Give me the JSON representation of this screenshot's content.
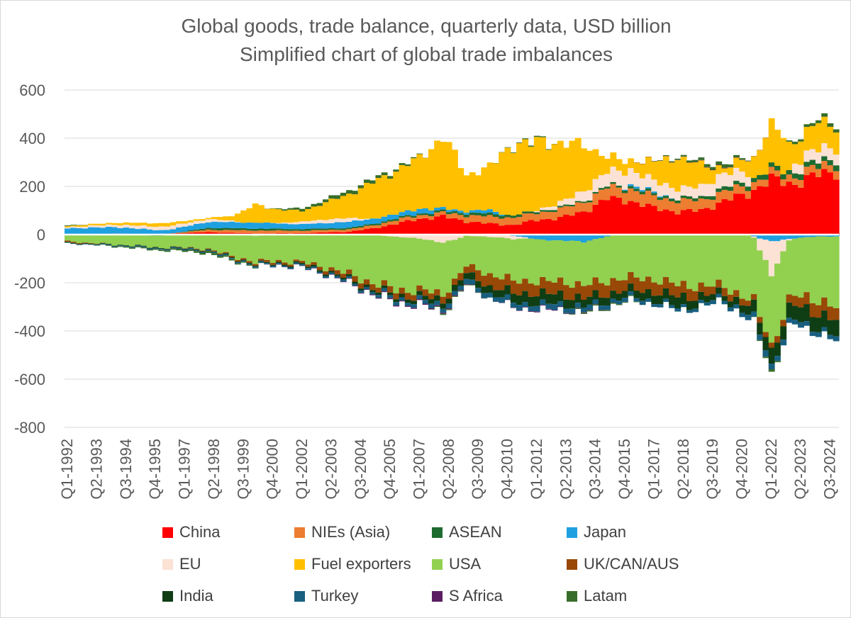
{
  "colors": {
    "china": "#ff0000",
    "nies": "#ed7d31",
    "asean": "#1e6b30",
    "japan": "#1fa0e0",
    "eu": "#fbe2d5",
    "fuel": "#ffc000",
    "usa": "#92d050",
    "ukcanaus": "#984807",
    "india": "#0f3d14",
    "turkey": "#185f80",
    "safrica": "#5c1c63",
    "latam": "#376d2a",
    "gridline": "#d9d9d9",
    "axis_text": "#595959"
  },
  "chart_data": {
    "type": "stacked-bar",
    "title": "Global goods, trade balance, quarterly data, USD billion",
    "subtitle": "Simplified chart of global trade imbalances",
    "xlabel": "",
    "ylabel": "",
    "ylim": [
      -800,
      600
    ],
    "yticks": [
      600,
      400,
      200,
      0,
      -200,
      -400,
      -600,
      -800
    ],
    "ytick_labels": [
      "600",
      "400",
      "200",
      "0",
      "-200",
      "-400",
      "-600",
      "-800"
    ],
    "grid": true,
    "legend_position": "bottom",
    "x_start_year": 1992,
    "x_quarters": 132,
    "xtick_labels": [
      "Q1-1992",
      "Q2-1993",
      "Q3-1994",
      "Q4-1995",
      "Q1-1997",
      "Q2-1998",
      "Q3-1999",
      "Q4-2000",
      "Q1-2002",
      "Q2-2003",
      "Q3-2004",
      "Q4-2005",
      "Q1-2007",
      "Q2-2008",
      "Q3-2009",
      "Q4-2010",
      "Q1-2012",
      "Q2-2013",
      "Q3-2014",
      "Q4-2015",
      "Q1-2017",
      "Q2-2018",
      "Q3-2019",
      "Q4-2020",
      "Q1-2022",
      "Q2-2023",
      "Q3-2024"
    ],
    "series_order": [
      "China",
      "NIEs (Asia)",
      "ASEAN",
      "Japan",
      "EU",
      "Fuel exporters",
      "USA",
      "UK/CAN/AUS",
      "India",
      "Turkey",
      "S Africa",
      "Latam"
    ],
    "series": [
      {
        "name": "China",
        "key": "china",
        "anchors": [
          [
            1992,
            -2
          ],
          [
            1993,
            -3
          ],
          [
            1994,
            2
          ],
          [
            1996,
            3
          ],
          [
            1998,
            10
          ],
          [
            2000,
            5
          ],
          [
            2002,
            6
          ],
          [
            2004,
            12
          ],
          [
            2005,
            25
          ],
          [
            2006,
            45
          ],
          [
            2007,
            65
          ],
          [
            2008,
            75
          ],
          [
            2009,
            55
          ],
          [
            2010,
            45
          ],
          [
            2011,
            40
          ],
          [
            2012,
            60
          ],
          [
            2013,
            70
          ],
          [
            2014,
            95
          ],
          [
            2015,
            150
          ],
          [
            2016,
            140
          ],
          [
            2017,
            110
          ],
          [
            2018,
            95
          ],
          [
            2019,
            100
          ],
          [
            2020,
            140
          ],
          [
            2021,
            170
          ],
          [
            2022,
            230
          ],
          [
            2023,
            210
          ],
          [
            2024,
            250
          ],
          [
            2025,
            270
          ]
        ]
      },
      {
        "name": "NIEs (Asia)",
        "key": "nies",
        "anchors": [
          [
            1992,
            2
          ],
          [
            1994,
            2
          ],
          [
            1996,
            -2
          ],
          [
            1998,
            10
          ],
          [
            2000,
            12
          ],
          [
            2002,
            10
          ],
          [
            2004,
            10
          ],
          [
            2006,
            15
          ],
          [
            2008,
            15
          ],
          [
            2009,
            25
          ],
          [
            2010,
            30
          ],
          [
            2012,
            30
          ],
          [
            2014,
            40
          ],
          [
            2016,
            50
          ],
          [
            2018,
            45
          ],
          [
            2020,
            40
          ],
          [
            2022,
            25
          ],
          [
            2023,
            30
          ],
          [
            2025,
            35
          ]
        ]
      },
      {
        "name": "ASEAN",
        "key": "asean",
        "anchors": [
          [
            1992,
            0
          ],
          [
            1996,
            -3
          ],
          [
            1998,
            8
          ],
          [
            2000,
            8
          ],
          [
            2004,
            6
          ],
          [
            2008,
            8
          ],
          [
            2010,
            12
          ],
          [
            2012,
            8
          ],
          [
            2014,
            6
          ],
          [
            2016,
            10
          ],
          [
            2018,
            10
          ],
          [
            2020,
            15
          ],
          [
            2022,
            20
          ],
          [
            2024,
            22
          ],
          [
            2025,
            22
          ]
        ]
      },
      {
        "name": "Japan",
        "key": "japan",
        "anchors": [
          [
            1992,
            25
          ],
          [
            1994,
            28
          ],
          [
            1996,
            15
          ],
          [
            1998,
            25
          ],
          [
            2000,
            25
          ],
          [
            2002,
            20
          ],
          [
            2004,
            25
          ],
          [
            2006,
            18
          ],
          [
            2007,
            20
          ],
          [
            2008,
            10
          ],
          [
            2009,
            8
          ],
          [
            2010,
            15
          ],
          [
            2011,
            -5
          ],
          [
            2012,
            -20
          ],
          [
            2013,
            -25
          ],
          [
            2014,
            -30
          ],
          [
            2015,
            -8
          ],
          [
            2016,
            8
          ],
          [
            2017,
            6
          ],
          [
            2018,
            0
          ],
          [
            2019,
            -3
          ],
          [
            2020,
            0
          ],
          [
            2021,
            0
          ],
          [
            2022,
            -30
          ],
          [
            2023,
            -15
          ],
          [
            2024,
            -8
          ],
          [
            2025,
            -8
          ]
        ]
      },
      {
        "name": "EU",
        "key": "eu",
        "anchors": [
          [
            1992,
            5
          ],
          [
            1994,
            10
          ],
          [
            1996,
            15
          ],
          [
            1998,
            12
          ],
          [
            1999,
            5
          ],
          [
            2000,
            -5
          ],
          [
            2002,
            10
          ],
          [
            2003,
            15
          ],
          [
            2004,
            15
          ],
          [
            2005,
            0
          ],
          [
            2006,
            -10
          ],
          [
            2007,
            -15
          ],
          [
            2008,
            -35
          ],
          [
            2009,
            -5
          ],
          [
            2010,
            -10
          ],
          [
            2011,
            -15
          ],
          [
            2012,
            5
          ],
          [
            2013,
            20
          ],
          [
            2014,
            40
          ],
          [
            2015,
            60
          ],
          [
            2016,
            60
          ],
          [
            2017,
            50
          ],
          [
            2018,
            40
          ],
          [
            2019,
            45
          ],
          [
            2020,
            60
          ],
          [
            2021,
            40
          ],
          [
            2022,
            -140
          ],
          [
            2023,
            40
          ],
          [
            2024,
            50
          ],
          [
            2025,
            45
          ]
        ]
      },
      {
        "name": "Fuel exporters",
        "key": "fuel",
        "anchors": [
          [
            1992,
            5
          ],
          [
            1994,
            8
          ],
          [
            1996,
            15
          ],
          [
            1998,
            5
          ],
          [
            1999,
            20
          ],
          [
            2000,
            75
          ],
          [
            2001,
            55
          ],
          [
            2002,
            45
          ],
          [
            2003,
            70
          ],
          [
            2004,
            100
          ],
          [
            2005,
            150
          ],
          [
            2006,
            180
          ],
          [
            2007,
            210
          ],
          [
            2008,
            300
          ],
          [
            2009,
            150
          ],
          [
            2010,
            180
          ],
          [
            2011,
            300
          ],
          [
            2012,
            280
          ],
          [
            2013,
            250
          ],
          [
            2014,
            190
          ],
          [
            2015,
            60
          ],
          [
            2016,
            40
          ],
          [
            2017,
            80
          ],
          [
            2018,
            130
          ],
          [
            2019,
            90
          ],
          [
            2020,
            20
          ],
          [
            2021,
            60
          ],
          [
            2022,
            180
          ],
          [
            2023,
            90
          ],
          [
            2024,
            110
          ],
          [
            2025,
            80
          ]
        ]
      },
      {
        "name": "USA",
        "key": "usa",
        "anchors": [
          [
            1992,
            -25
          ],
          [
            1994,
            -40
          ],
          [
            1996,
            -50
          ],
          [
            1998,
            -60
          ],
          [
            1999,
            -90
          ],
          [
            2000,
            -110
          ],
          [
            2001,
            -110
          ],
          [
            2002,
            -115
          ],
          [
            2003,
            -135
          ],
          [
            2004,
            -165
          ],
          [
            2005,
            -200
          ],
          [
            2006,
            -220
          ],
          [
            2007,
            -215
          ],
          [
            2008,
            -215
          ],
          [
            2009,
            -125
          ],
          [
            2010,
            -155
          ],
          [
            2011,
            -175
          ],
          [
            2012,
            -175
          ],
          [
            2013,
            -170
          ],
          [
            2014,
            -180
          ],
          [
            2015,
            -185
          ],
          [
            2016,
            -180
          ],
          [
            2017,
            -185
          ],
          [
            2018,
            -210
          ],
          [
            2019,
            -210
          ],
          [
            2020,
            -215
          ],
          [
            2021,
            -265
          ],
          [
            2022,
            -290
          ],
          [
            2023,
            -240
          ],
          [
            2024,
            -260
          ],
          [
            2025,
            -310
          ]
        ]
      },
      {
        "name": "UK/CAN/AUS",
        "key": "ukcanaus",
        "anchors": [
          [
            1992,
            -5
          ],
          [
            1994,
            0
          ],
          [
            1996,
            0
          ],
          [
            1998,
            -3
          ],
          [
            2000,
            -8
          ],
          [
            2002,
            -8
          ],
          [
            2004,
            -20
          ],
          [
            2006,
            -25
          ],
          [
            2008,
            -25
          ],
          [
            2009,
            -30
          ],
          [
            2010,
            -50
          ],
          [
            2012,
            -50
          ],
          [
            2014,
            -55
          ],
          [
            2016,
            -50
          ],
          [
            2018,
            -50
          ],
          [
            2020,
            -30
          ],
          [
            2021,
            -25
          ],
          [
            2022,
            -20
          ],
          [
            2023,
            -40
          ],
          [
            2024,
            -55
          ],
          [
            2025,
            -55
          ]
        ]
      },
      {
        "name": "India",
        "key": "india",
        "anchors": [
          [
            1992,
            -2
          ],
          [
            1996,
            -3
          ],
          [
            2000,
            -3
          ],
          [
            2004,
            -8
          ],
          [
            2006,
            -12
          ],
          [
            2008,
            -22
          ],
          [
            2010,
            -30
          ],
          [
            2012,
            -45
          ],
          [
            2014,
            -35
          ],
          [
            2016,
            -30
          ],
          [
            2018,
            -45
          ],
          [
            2020,
            -20
          ],
          [
            2021,
            -40
          ],
          [
            2022,
            -60
          ],
          [
            2023,
            -60
          ],
          [
            2024,
            -65
          ],
          [
            2025,
            -70
          ]
        ]
      },
      {
        "name": "Turkey",
        "key": "turkey",
        "anchors": [
          [
            1992,
            -2
          ],
          [
            1996,
            -4
          ],
          [
            2000,
            -5
          ],
          [
            2004,
            -8
          ],
          [
            2008,
            -18
          ],
          [
            2010,
            -20
          ],
          [
            2012,
            -22
          ],
          [
            2014,
            -20
          ],
          [
            2016,
            -15
          ],
          [
            2018,
            -12
          ],
          [
            2020,
            -15
          ],
          [
            2022,
            -25
          ],
          [
            2023,
            -20
          ],
          [
            2025,
            -18
          ]
        ]
      },
      {
        "name": "S Africa",
        "key": "safrica",
        "anchors": [
          [
            1992,
            0
          ],
          [
            2000,
            0
          ],
          [
            2004,
            -2
          ],
          [
            2006,
            -4
          ],
          [
            2008,
            -4
          ],
          [
            2010,
            0
          ],
          [
            2012,
            -3
          ],
          [
            2014,
            -2
          ],
          [
            2016,
            0
          ],
          [
            2020,
            2
          ],
          [
            2022,
            0
          ],
          [
            2025,
            0
          ]
        ]
      },
      {
        "name": "Latam",
        "key": "latam",
        "anchors": [
          [
            1992,
            3
          ],
          [
            1994,
            -3
          ],
          [
            1996,
            -5
          ],
          [
            1998,
            -8
          ],
          [
            2000,
            -3
          ],
          [
            2002,
            10
          ],
          [
            2004,
            15
          ],
          [
            2006,
            10
          ],
          [
            2008,
            -5
          ],
          [
            2010,
            0
          ],
          [
            2012,
            5
          ],
          [
            2014,
            -5
          ],
          [
            2016,
            -3
          ],
          [
            2018,
            5
          ],
          [
            2020,
            15
          ],
          [
            2022,
            -10
          ],
          [
            2023,
            10
          ],
          [
            2025,
            15
          ]
        ]
      }
    ]
  },
  "legend": {
    "items": [
      {
        "label": "China",
        "key": "china"
      },
      {
        "label": "NIEs (Asia)",
        "key": "nies"
      },
      {
        "label": "ASEAN",
        "key": "asean"
      },
      {
        "label": "Japan",
        "key": "japan"
      },
      {
        "label": "EU",
        "key": "eu"
      },
      {
        "label": "Fuel exporters",
        "key": "fuel"
      },
      {
        "label": "USA",
        "key": "usa"
      },
      {
        "label": "UK/CAN/AUS",
        "key": "ukcanaus"
      },
      {
        "label": "India",
        "key": "india"
      },
      {
        "label": "Turkey",
        "key": "turkey"
      },
      {
        "label": "S Africa",
        "key": "safrica"
      },
      {
        "label": "Latam",
        "key": "latam"
      }
    ]
  }
}
